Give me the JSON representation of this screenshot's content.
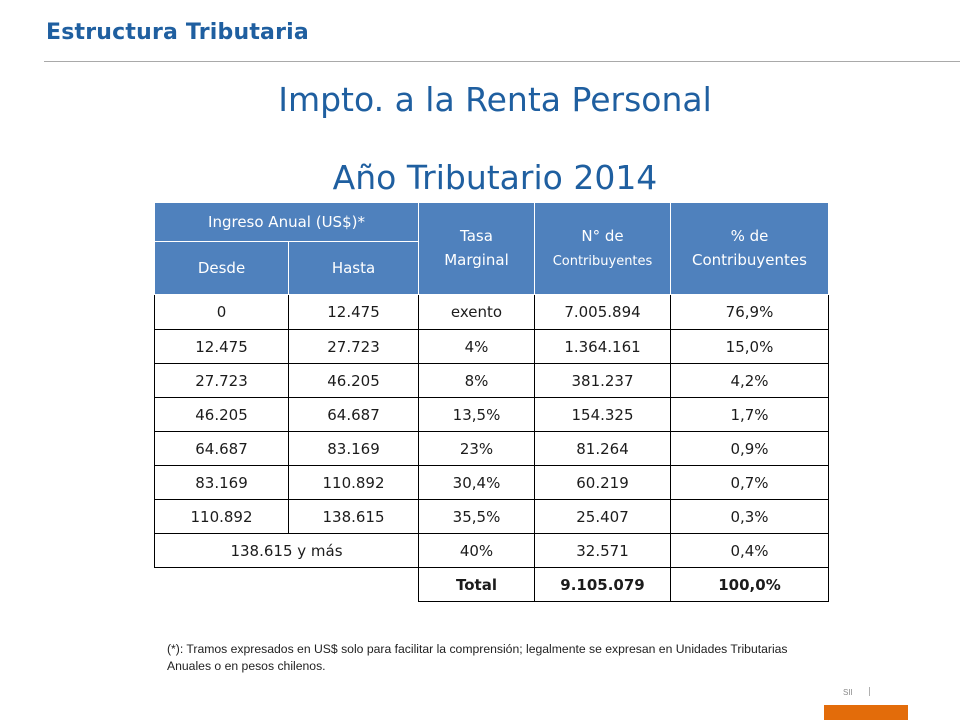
{
  "header": {
    "title": "Estructura Tributaria"
  },
  "slide": {
    "title": "Impto. a la Renta Personal",
    "subtitle": "Año Tributario 2014"
  },
  "table": {
    "group_header": "Ingreso Anual (US$)*",
    "col_desde": "Desde",
    "col_hasta": "Hasta",
    "col_tasa_line1": "Tasa",
    "col_tasa_line2": "Marginal",
    "col_n_line1": "N° de",
    "col_n_line2": "Contribuyentes",
    "col_pct_line1": "% de",
    "col_pct_line2": "Contribuyentes",
    "rows": [
      {
        "desde": "0",
        "hasta": "12.475",
        "tasa": "exento",
        "n": "7.005.894",
        "pct": "76,9%"
      },
      {
        "desde": "12.475",
        "hasta": "27.723",
        "tasa": "4%",
        "n": "1.364.161",
        "pct": "15,0%"
      },
      {
        "desde": "27.723",
        "hasta": "46.205",
        "tasa": "8%",
        "n": "381.237",
        "pct": "4,2%"
      },
      {
        "desde": "46.205",
        "hasta": "64.687",
        "tasa": "13,5%",
        "n": "154.325",
        "pct": "1,7%"
      },
      {
        "desde": "64.687",
        "hasta": "83.169",
        "tasa": "23%",
        "n": "81.264",
        "pct": "0,9%"
      },
      {
        "desde": "83.169",
        "hasta": "110.892",
        "tasa": "30,4%",
        "n": "60.219",
        "pct": "0,7%"
      },
      {
        "desde": "110.892",
        "hasta": "138.615",
        "tasa": "35,5%",
        "n": "25.407",
        "pct": "0,3%"
      }
    ],
    "last_row": {
      "range": "138.615 y más",
      "tasa": "40%",
      "n": "32.571",
      "pct": "0,4%"
    },
    "total_row": {
      "label": "Total",
      "n": "9.105.079",
      "pct": "100,0%"
    }
  },
  "footnote": "(*): Tramos expresados en US$ solo para facilitar la comprensión; legalmente se expresan en Unidades Tributarias Anuales o en pesos chilenos.",
  "footer": {
    "mark": "SII"
  },
  "colors": {
    "accent": "#1f5fa0",
    "table_header": "#4f81bd",
    "footer_bar": "#e36c0a"
  }
}
